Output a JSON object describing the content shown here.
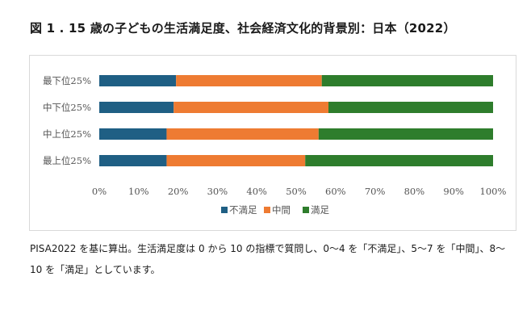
{
  "figure": {
    "title": "図 1 . 15 歳の子どもの生活満足度、社会経済文化的背景別：日本（2022）",
    "caption": "PISA2022 を基に算出。生活満足度は 0 から 10 の指標で質問し、0〜4 を「不満足」、5〜7 を「中間」、8〜10 を「満足」としています。"
  },
  "chart_data": {
    "type": "bar",
    "orientation": "horizontal",
    "stacked": true,
    "percent_stacked": true,
    "categories": [
      "最下位25%",
      "中下位25%",
      "中上位25%",
      "最上位25%"
    ],
    "series": [
      {
        "name": "不満足",
        "color": "#1f5f84",
        "values": [
          19.5,
          18.9,
          17.1,
          17.1
        ]
      },
      {
        "name": "中間",
        "color": "#ee7b32",
        "values": [
          37.0,
          39.3,
          38.6,
          35.2
        ]
      },
      {
        "name": "満足",
        "color": "#2e7d2c",
        "values": [
          43.5,
          41.8,
          44.3,
          47.7
        ]
      }
    ],
    "x_ticks": [
      "0%",
      "10%",
      "20%",
      "30%",
      "40%",
      "50%",
      "60%",
      "70%",
      "80%",
      "90%",
      "100%"
    ],
    "xlim": [
      0,
      100
    ],
    "grid": false,
    "legend_position": "bottom"
  }
}
